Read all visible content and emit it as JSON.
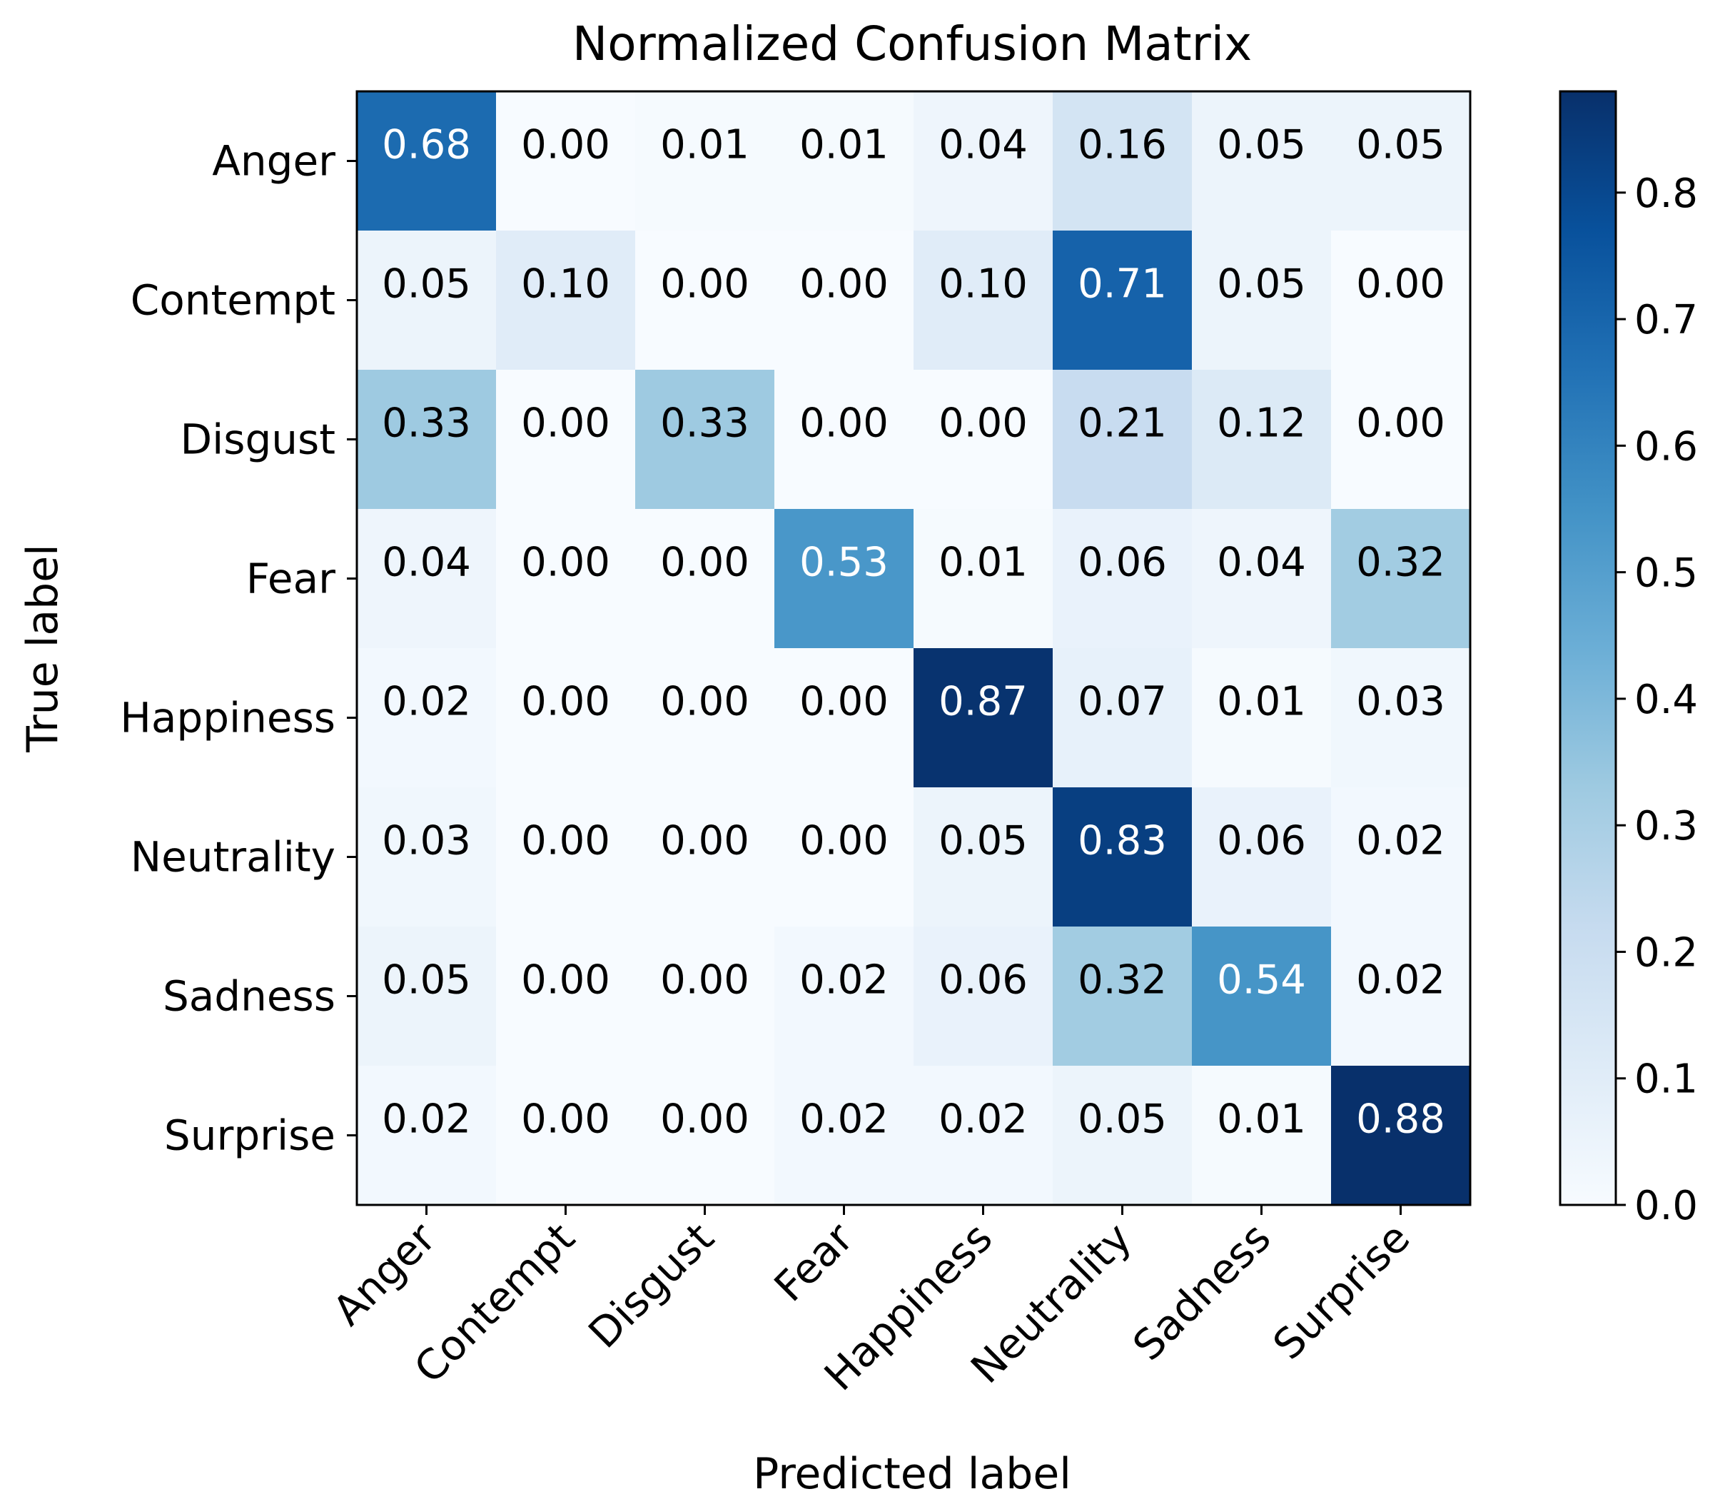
{
  "chart_data": {
    "type": "heatmap",
    "title": "Normalized Confusion Matrix",
    "xlabel": "Predicted label",
    "ylabel": "True label",
    "x_categories": [
      "Anger",
      "Contempt",
      "Disgust",
      "Fear",
      "Happiness",
      "Neutrality",
      "Sadness",
      "Surprise"
    ],
    "y_categories": [
      "Anger",
      "Contempt",
      "Disgust",
      "Fear",
      "Happiness",
      "Neutrality",
      "Sadness",
      "Surprise"
    ],
    "values": [
      [
        0.68,
        0.0,
        0.01,
        0.01,
        0.04,
        0.16,
        0.05,
        0.05
      ],
      [
        0.05,
        0.1,
        0.0,
        0.0,
        0.1,
        0.71,
        0.05,
        0.0
      ],
      [
        0.33,
        0.0,
        0.33,
        0.0,
        0.0,
        0.21,
        0.12,
        0.0
      ],
      [
        0.04,
        0.0,
        0.0,
        0.53,
        0.01,
        0.06,
        0.04,
        0.32
      ],
      [
        0.02,
        0.0,
        0.0,
        0.0,
        0.87,
        0.07,
        0.01,
        0.03
      ],
      [
        0.03,
        0.0,
        0.0,
        0.0,
        0.05,
        0.83,
        0.06,
        0.02
      ],
      [
        0.05,
        0.0,
        0.0,
        0.02,
        0.06,
        0.32,
        0.54,
        0.02
      ],
      [
        0.02,
        0.0,
        0.0,
        0.02,
        0.02,
        0.05,
        0.01,
        0.88
      ]
    ],
    "value_format_decimals": 2,
    "text_color_threshold": 0.44,
    "colormap": "Blues",
    "vmin": 0.0,
    "vmax": 0.88,
    "colorbar_ticks": [
      0.0,
      0.1,
      0.2,
      0.3,
      0.4,
      0.5,
      0.6,
      0.7,
      0.8
    ],
    "colorbar_tick_labels": [
      "0.0",
      "0.1",
      "0.2",
      "0.3",
      "0.4",
      "0.5",
      "0.6",
      "0.7",
      "0.8"
    ],
    "colors": {
      "cmap_stops": [
        "#f7fbff",
        "#deebf7",
        "#c6dbef",
        "#9ecae1",
        "#6baed6",
        "#4292c6",
        "#2171b5",
        "#08519c",
        "#08306b"
      ],
      "text_dark": "#000000",
      "text_light": "#ffffff",
      "axes": "#000000",
      "background": "#ffffff"
    }
  }
}
